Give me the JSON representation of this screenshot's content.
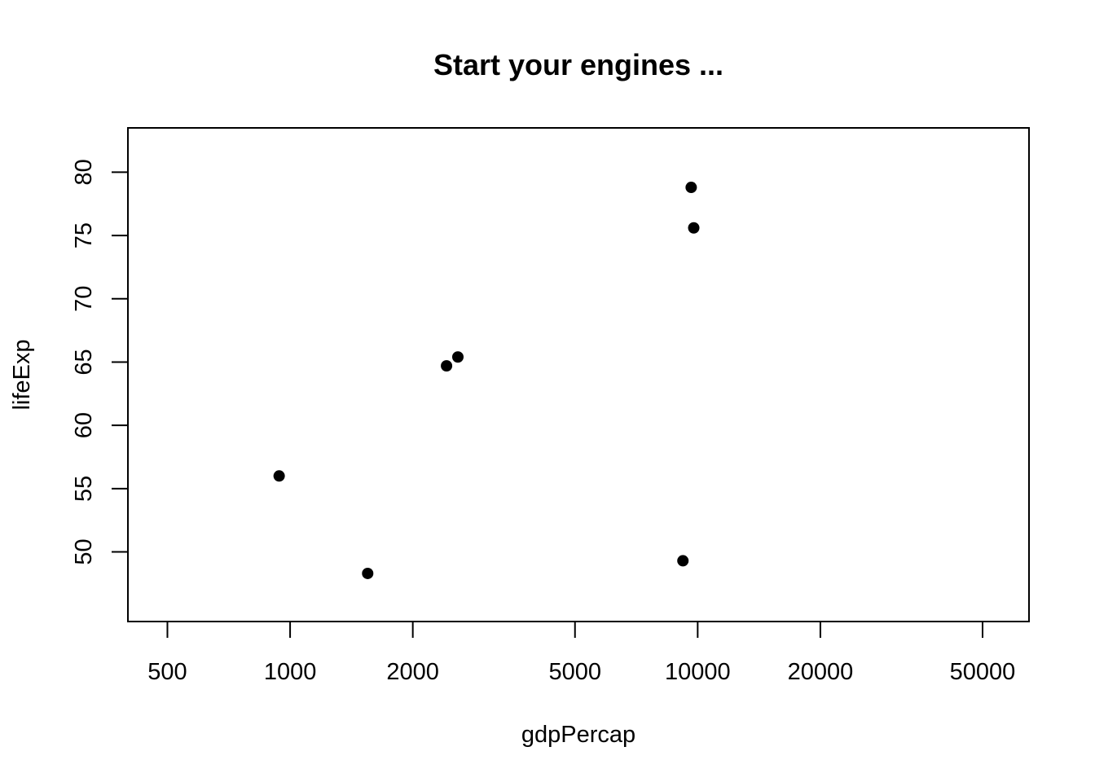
{
  "chart_data": {
    "type": "scatter",
    "title": "Start your engines ...",
    "xlabel": "gdpPercap",
    "ylabel": "lifeExp",
    "x_scale": "log",
    "xlim": [
      400,
      65000
    ],
    "ylim": [
      44.5,
      83.5
    ],
    "x_ticks": [
      500,
      1000,
      2000,
      5000,
      10000,
      20000,
      50000
    ],
    "x_tick_labels": [
      "500",
      "1000",
      "2000",
      "5000",
      "10000",
      "20000",
      "50000"
    ],
    "y_ticks": [
      50,
      55,
      60,
      65,
      70,
      75,
      80
    ],
    "y_tick_labels": [
      "50",
      "55",
      "60",
      "65",
      "70",
      "75",
      "80"
    ],
    "grid": false,
    "legend": null,
    "color": "#000000",
    "points": [
      {
        "x": 940,
        "y": 56.0
      },
      {
        "x": 1550,
        "y": 48.3
      },
      {
        "x": 2420,
        "y": 64.7
      },
      {
        "x": 2580,
        "y": 65.4
      },
      {
        "x": 9200,
        "y": 49.3
      },
      {
        "x": 9640,
        "y": 78.8
      },
      {
        "x": 9780,
        "y": 75.6
      }
    ]
  }
}
